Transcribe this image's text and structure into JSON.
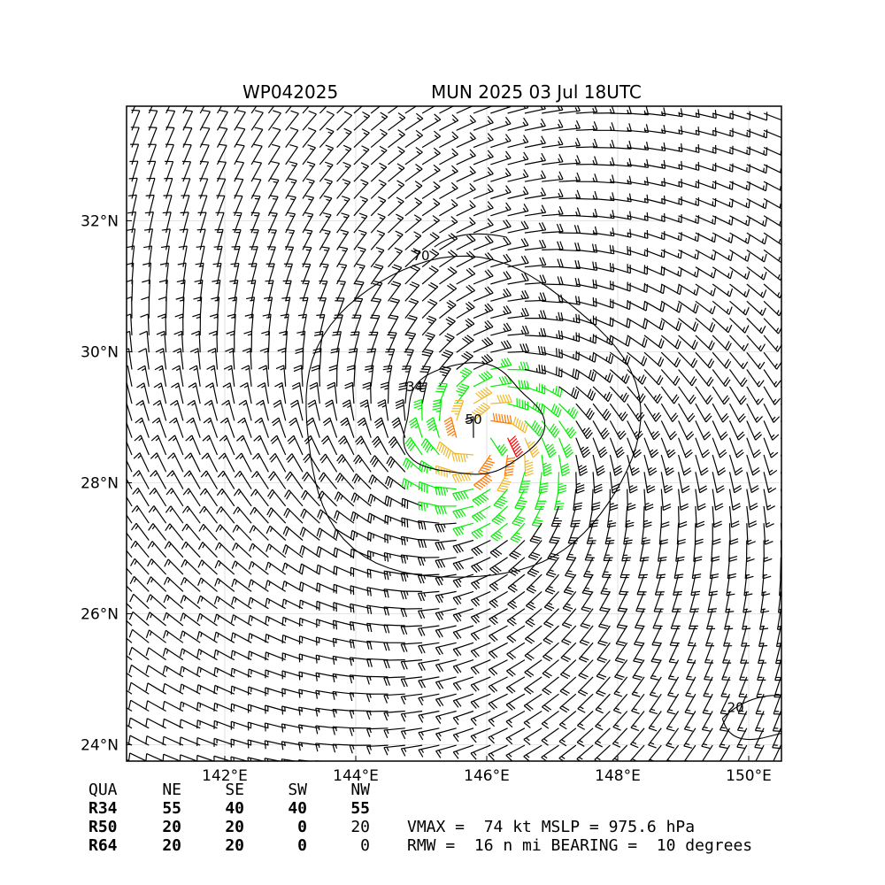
{
  "title": {
    "storm_id": "WP042025",
    "storm_info": "MUN 2025 03 Jul 18UTC"
  },
  "colors": {
    "calm": "#000000",
    "r34": "#00ee00",
    "r50": "#f0b828",
    "r64": "#ff7700",
    "max": "#ff0000",
    "contour": "#000000",
    "grid": "#cccccc"
  },
  "quadrant_table": {
    "header": [
      "QUA",
      "NE",
      "SE",
      "SW",
      "NW"
    ],
    "rows": [
      {
        "label": "R34",
        "values": [
          "55",
          "40",
          "40",
          "55"
        ]
      },
      {
        "label": "R50",
        "values": [
          "20",
          "20",
          "0",
          "20"
        ]
      },
      {
        "label": "R64",
        "values": [
          "20",
          "20",
          "0",
          "0"
        ]
      }
    ]
  },
  "stats": {
    "line1": "VMAX =  74 kt MSLP = 975.6 hPa",
    "line2": "RMW =  16 n mi BEARING =  10 degrees"
  },
  "chart_data": {
    "type": "wind-barb map",
    "title": "WP042025          MUN 2025 03 Jul 18UTC",
    "x_axis": {
      "label": "",
      "unit": "°E",
      "range": [
        140.5,
        150.5
      ],
      "ticks": [
        142,
        144,
        146,
        148,
        150
      ],
      "tick_labels": [
        "142°E",
        "144°E",
        "146°E",
        "148°E",
        "150°E"
      ]
    },
    "y_axis": {
      "label": "",
      "unit": "°N",
      "range": [
        23.75,
        33.75
      ],
      "ticks": [
        24,
        26,
        28,
        30,
        32
      ],
      "tick_labels": [
        "24°N",
        "26°N",
        "28°N",
        "30°N",
        "32°N"
      ]
    },
    "grid": true,
    "center": {
      "lon": 145.9,
      "lat": 28.65
    },
    "vmax_kt": 74,
    "mslp_hpa": 975.6,
    "rmw_nmi": 16,
    "bearing_deg": 10,
    "contours": [
      {
        "label": "70",
        "lon": 145.0,
        "lat": 31.4
      },
      {
        "label": "34",
        "lon": 144.9,
        "lat": 29.4
      },
      {
        "label": "50",
        "lon": 145.8,
        "lat": 28.9
      },
      {
        "label": "20",
        "lon": 149.8,
        "lat": 24.5
      }
    ],
    "wind_radii_nmi": {
      "R34": {
        "NE": 55,
        "SE": 40,
        "SW": 40,
        "NW": 55
      },
      "R50": {
        "NE": 20,
        "SE": 20,
        "SW": 0,
        "NW": 20
      },
      "R64": {
        "NE": 20,
        "SE": 20,
        "SW": 0,
        "NW": 0
      }
    }
  }
}
